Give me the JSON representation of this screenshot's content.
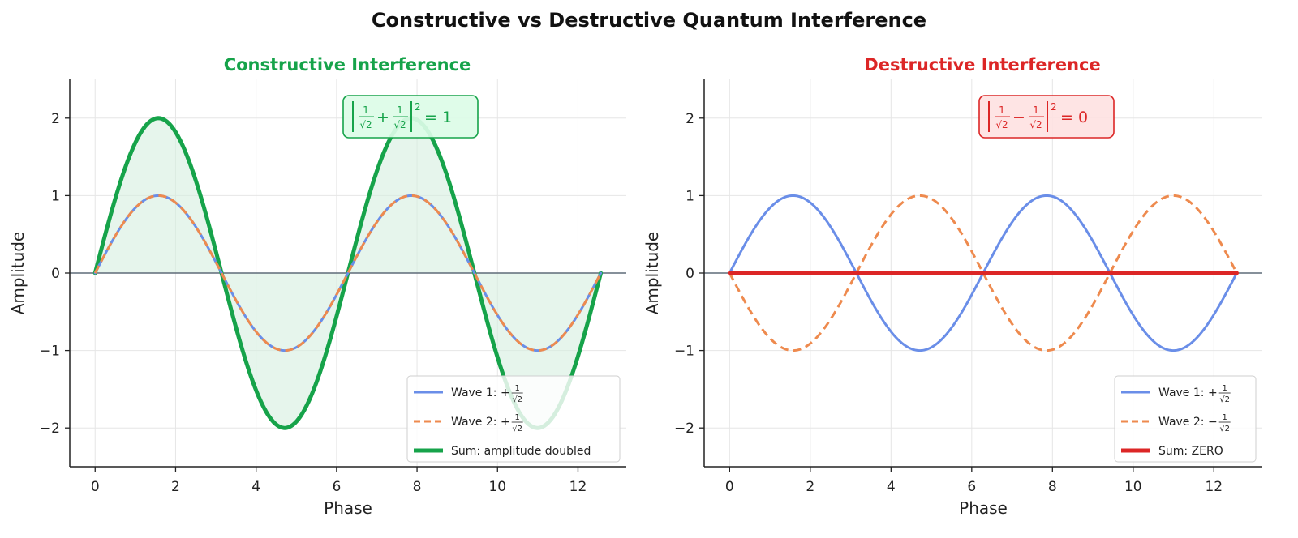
{
  "figure_title": "Constructive vs Destructive Quantum Interference",
  "colors": {
    "wave1": "#6A8EE8",
    "wave2": "#EE8A4E",
    "constructive": "#16A34A",
    "constructive_fill": "#D6EEDF",
    "constructive_box": "#DCFCE7",
    "destructive": "#DC2626",
    "destructive_box": "#FEE2E2",
    "overlap": "#B86A5E",
    "baseline": "#5F6B78",
    "grid": "#E6E6E6",
    "axis": "#222222"
  },
  "chart_data": [
    {
      "type": "line",
      "title": "Constructive Interference",
      "xlabel": "Phase",
      "ylabel": "Amplitude",
      "xlim": [
        -0.63,
        13.2
      ],
      "ylim": [
        -2.5,
        2.5
      ],
      "xticks": [
        0,
        2,
        4,
        6,
        8,
        10,
        12
      ],
      "yticks": [
        -2,
        -1,
        0,
        1,
        2
      ],
      "grid": true,
      "legend_position": "lower-right",
      "x_range": [
        0,
        12.566
      ],
      "series": [
        {
          "name": "Wave 1: +1/√2",
          "function": "sin(x)",
          "style": "solid",
          "color": "wave1"
        },
        {
          "name": "Wave 2: +1/√2",
          "function": "sin(x)",
          "style": "dashed",
          "color": "wave2"
        },
        {
          "name": "Sum: amplitude doubled",
          "function": "2·sin(x)",
          "style": "solid-thick",
          "color": "constructive",
          "fill_to_zero": true
        }
      ],
      "annotation": {
        "sign": "+",
        "result": "1",
        "numerator": "1",
        "denominator": "√2",
        "exponent": "2"
      }
    },
    {
      "type": "line",
      "title": "Destructive Interference",
      "xlabel": "Phase",
      "ylabel": "Amplitude",
      "xlim": [
        -0.63,
        13.2
      ],
      "ylim": [
        -2.5,
        2.5
      ],
      "xticks": [
        0,
        2,
        4,
        6,
        8,
        10,
        12
      ],
      "yticks": [
        -2,
        -1,
        0,
        1,
        2
      ],
      "grid": true,
      "legend_position": "lower-right",
      "x_range": [
        0,
        12.566
      ],
      "series": [
        {
          "name": "Wave 1: +1/√2",
          "function": "sin(x)",
          "style": "solid",
          "color": "wave1"
        },
        {
          "name": "Wave 2: −1/√2",
          "function": "-sin(x)",
          "style": "dashed",
          "color": "wave2"
        },
        {
          "name": "Sum: ZERO",
          "function": "0",
          "style": "solid-thick",
          "color": "destructive"
        }
      ],
      "annotation": {
        "sign": "−",
        "result": "0",
        "numerator": "1",
        "denominator": "√2",
        "exponent": "2"
      }
    }
  ]
}
